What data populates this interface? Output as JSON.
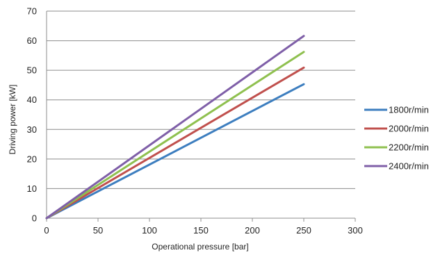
{
  "chart_data": {
    "type": "line",
    "title": "",
    "xlabel": "Operational pressure [bar]",
    "ylabel": "Driving power [kW]",
    "xlim": [
      0,
      300
    ],
    "ylim": [
      0,
      70
    ],
    "xticks": [
      0,
      50,
      100,
      150,
      200,
      250,
      300
    ],
    "yticks": [
      0,
      10,
      20,
      30,
      40,
      50,
      60,
      70
    ],
    "grid": "horizontal",
    "legend_position": "right",
    "x": [
      0,
      250
    ],
    "series": [
      {
        "name": "1800r/min",
        "color": "#3d7ebf",
        "values": [
          0,
          45.3
        ]
      },
      {
        "name": "2000r/min",
        "color": "#c0504d",
        "values": [
          0,
          50.9
        ]
      },
      {
        "name": "2200r/min",
        "color": "#8fc04f",
        "values": [
          0,
          56.2
        ]
      },
      {
        "name": "2400r/min",
        "color": "#7f5fa8",
        "values": [
          0,
          61.6
        ]
      }
    ]
  }
}
